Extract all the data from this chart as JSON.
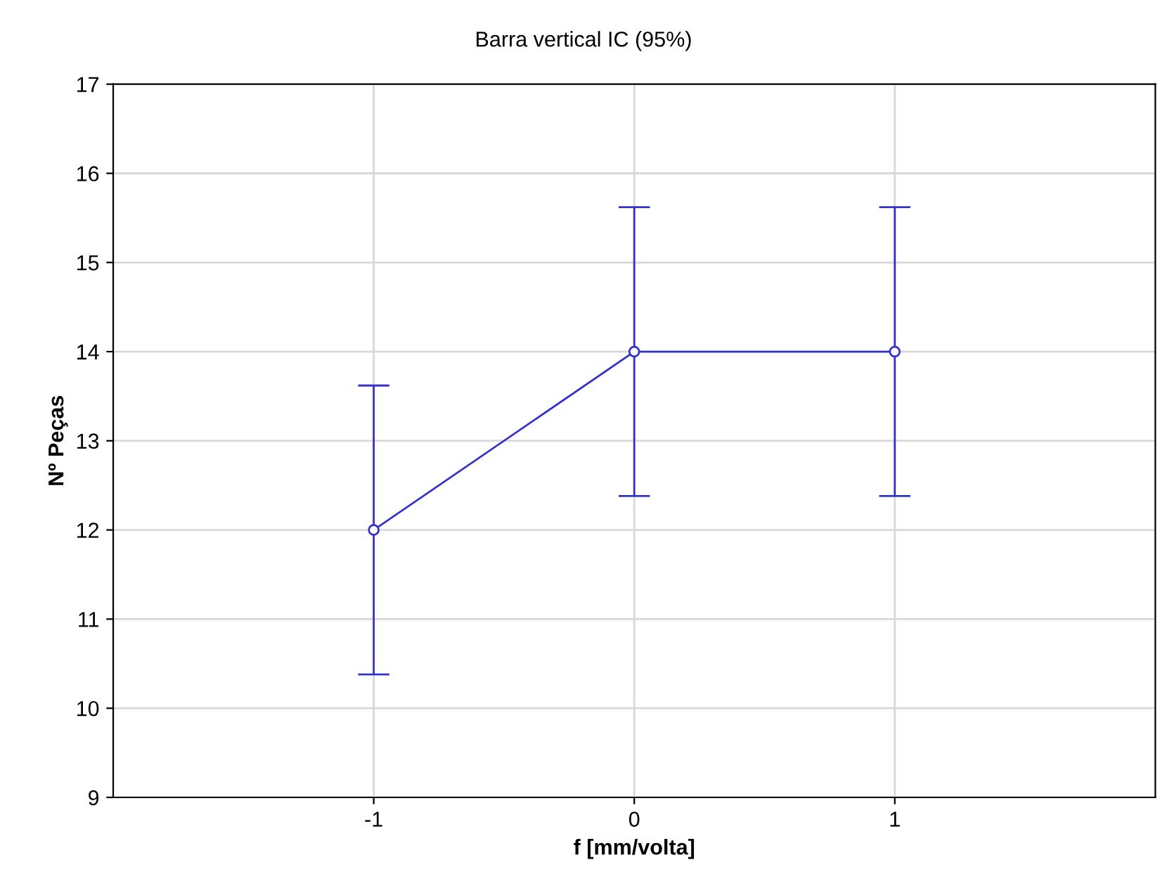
{
  "chart_data": {
    "type": "line",
    "title": "Barra vertical IC (95%)",
    "xlabel": "f [mm/volta]",
    "ylabel": "Nº Peças",
    "x": [
      -1,
      0,
      1
    ],
    "series": [
      {
        "color": "#3333cc",
        "values": [
          12,
          14,
          14
        ],
        "errors": [
          1.62,
          1.62,
          1.62
        ]
      }
    ],
    "xlim": [
      -2,
      2
    ],
    "xticks": [
      -1,
      0,
      1
    ],
    "ylim": [
      9,
      17
    ],
    "yticks": [
      9,
      10,
      11,
      12,
      13,
      14,
      15,
      16,
      17
    ],
    "grid": true,
    "marker": "circle",
    "line_style": "solid"
  }
}
